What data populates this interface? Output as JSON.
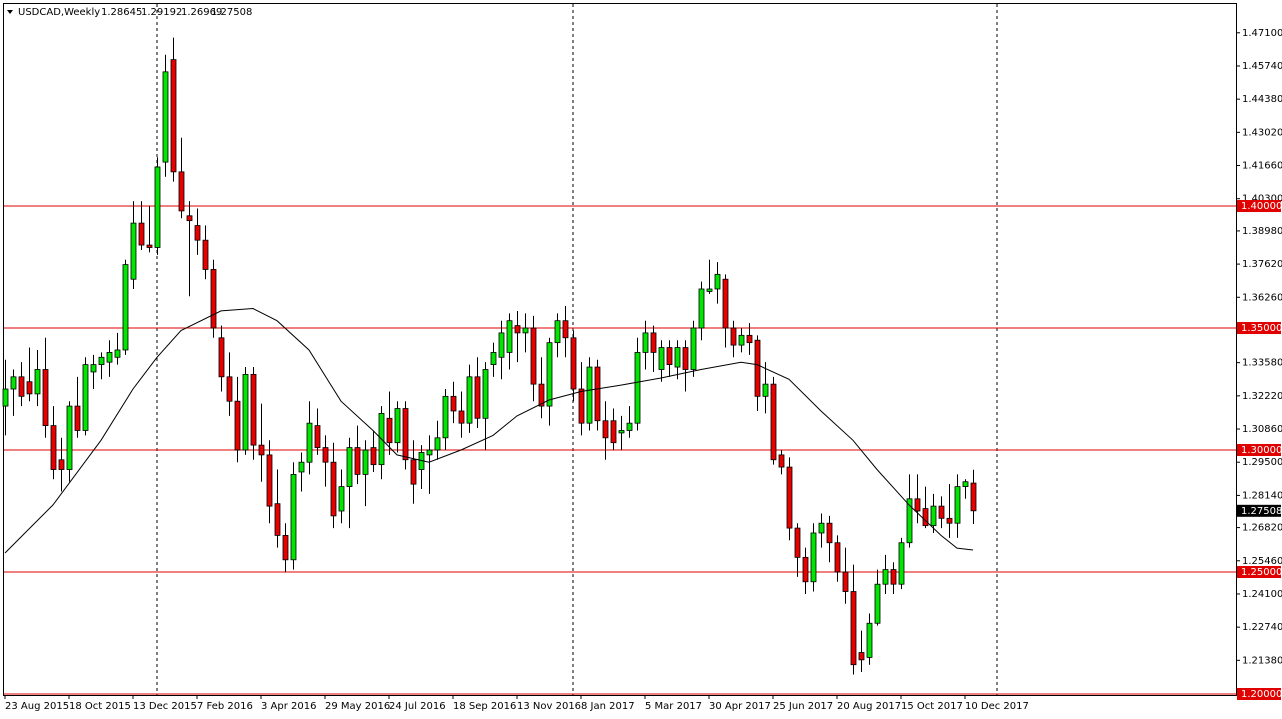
{
  "chart_data": {
    "type": "candlestick",
    "title": "USDCAD,Weekly",
    "categories": [
      "23 Aug 2015",
      null,
      null,
      null,
      null,
      null,
      null,
      null,
      "18 Oct 2015",
      null,
      null,
      null,
      null,
      null,
      null,
      null,
      "13 Dec 2015",
      null,
      null,
      null,
      null,
      null,
      null,
      null,
      "7 Feb 2016",
      null,
      null,
      null,
      null,
      null,
      null,
      null,
      "3 Apr 2016",
      null,
      null,
      null,
      null,
      null,
      null,
      null,
      "29 May 2016",
      null,
      null,
      null,
      null,
      null,
      null,
      null,
      "24 Jul 2016",
      null,
      null,
      null,
      null,
      null,
      null,
      null,
      "18 Sep 2016",
      null,
      null,
      null,
      null,
      null,
      null,
      null,
      "13 Nov 2016",
      null,
      null,
      null,
      null,
      null,
      null,
      null,
      "8 Jan 2017",
      null,
      null,
      null,
      null,
      null,
      null,
      null,
      "5 Mar 2017",
      null,
      null,
      null,
      null,
      null,
      null,
      null,
      "30 Apr 2017",
      null,
      null,
      null,
      null,
      null,
      null,
      null,
      "25 Jun 2017",
      null,
      null,
      null,
      null,
      null,
      null,
      null,
      "20 Aug 2017",
      null,
      null,
      null,
      null,
      null,
      null,
      null,
      "15 Oct 2017",
      null,
      null,
      null,
      null,
      null,
      null,
      null,
      "10 Dec 2017",
      null
    ],
    "open": [
      1.318,
      1.325,
      1.33,
      1.328,
      1.323,
      1.333,
      1.31,
      1.296,
      1.292,
      1.318,
      1.308,
      1.332,
      1.335,
      1.336,
      1.338,
      1.341,
      1.37,
      1.393,
      1.384,
      1.383,
      1.418,
      1.46,
      1.414,
      1.396,
      1.392,
      1.386,
      1.374,
      1.346,
      1.33,
      1.32,
      1.3,
      1.331,
      1.302,
      1.298,
      1.278,
      1.265,
      1.255,
      1.291,
      1.295,
      1.31,
      1.301,
      1.295,
      1.275,
      1.285,
      1.301,
      1.29,
      1.301,
      1.294,
      1.313,
      1.303,
      1.317,
      1.296,
      1.292,
      1.298,
      1.3,
      1.305,
      1.322,
      1.316,
      1.311,
      1.33,
      1.313,
      1.335,
      1.338,
      1.34,
      1.351,
      1.348,
      1.35,
      1.327,
      1.318,
      1.344,
      1.353,
      1.346,
      1.325,
      1.311,
      1.334,
      1.312,
      1.312,
      1.307,
      1.308,
      1.311,
      1.34,
      1.348,
      1.333,
      1.342,
      1.334,
      1.342,
      1.333,
      1.35,
      1.365,
      1.366,
      1.37,
      1.35,
      1.343,
      1.347,
      1.345,
      1.322,
      1.327,
      1.298,
      1.293,
      1.268,
      1.256,
      1.246,
      1.266,
      1.27,
      1.262,
      1.25,
      1.242,
      1.217,
      1.215,
      1.229,
      1.245,
      1.251,
      1.245,
      1.262,
      1.28,
      1.276,
      1.269,
      1.277,
      1.272,
      1.27,
      1.285,
      1.28645
    ],
    "high": [
      1.337,
      1.333,
      1.336,
      1.342,
      1.341,
      1.346,
      1.318,
      1.305,
      1.32,
      1.33,
      1.338,
      1.339,
      1.34,
      1.345,
      1.348,
      1.378,
      1.402,
      1.402,
      1.4,
      1.42,
      1.462,
      1.469,
      1.428,
      1.402,
      1.399,
      1.392,
      1.378,
      1.351,
      1.34,
      1.33,
      1.334,
      1.334,
      1.319,
      1.304,
      1.292,
      1.27,
      1.295,
      1.299,
      1.32,
      1.317,
      1.306,
      1.303,
      1.292,
      1.305,
      1.31,
      1.304,
      1.308,
      1.318,
      1.324,
      1.32,
      1.32,
      1.304,
      1.302,
      1.306,
      1.312,
      1.325,
      1.328,
      1.324,
      1.335,
      1.338,
      1.336,
      1.344,
      1.353,
      1.356,
      1.357,
      1.356,
      1.355,
      1.338,
      1.346,
      1.356,
      1.359,
      1.349,
      1.336,
      1.338,
      1.337,
      1.32,
      1.317,
      1.314,
      1.318,
      1.346,
      1.353,
      1.351,
      1.345,
      1.345,
      1.345,
      1.345,
      1.353,
      1.369,
      1.378,
      1.377,
      1.372,
      1.353,
      1.35,
      1.352,
      1.347,
      1.336,
      1.33,
      1.3,
      1.297,
      1.27,
      1.26,
      1.27,
      1.274,
      1.273,
      1.265,
      1.26,
      1.253,
      1.226,
      1.233,
      1.251,
      1.257,
      1.254,
      1.264,
      1.29,
      1.29,
      1.285,
      1.282,
      1.281,
      1.286,
      1.29,
      1.288,
      1.29192
    ],
    "low": [
      1.306,
      1.314,
      1.318,
      1.32,
      1.318,
      1.305,
      1.288,
      1.283,
      1.287,
      1.305,
      1.306,
      1.325,
      1.329,
      1.33,
      1.335,
      1.339,
      1.366,
      1.382,
      1.381,
      1.38,
      1.412,
      1.41,
      1.395,
      1.363,
      1.38,
      1.37,
      1.346,
      1.324,
      1.314,
      1.295,
      1.298,
      1.296,
      1.287,
      1.27,
      1.26,
      1.25,
      1.251,
      1.283,
      1.29,
      1.298,
      1.285,
      1.268,
      1.27,
      1.268,
      1.286,
      1.277,
      1.291,
      1.288,
      1.298,
      1.299,
      1.292,
      1.278,
      1.284,
      1.282,
      1.296,
      1.3,
      1.311,
      1.305,
      1.307,
      1.309,
      1.3,
      1.33,
      1.329,
      1.333,
      1.336,
      1.34,
      1.32,
      1.313,
      1.31,
      1.338,
      1.338,
      1.32,
      1.306,
      1.308,
      1.308,
      1.296,
      1.3,
      1.3,
      1.305,
      1.308,
      1.333,
      1.332,
      1.328,
      1.33,
      1.329,
      1.324,
      1.33,
      1.345,
      1.364,
      1.36,
      1.342,
      1.338,
      1.34,
      1.339,
      1.316,
      1.315,
      1.294,
      1.29,
      1.263,
      1.248,
      1.241,
      1.242,
      1.26,
      1.254,
      1.246,
      1.237,
      1.208,
      1.209,
      1.212,
      1.228,
      1.241,
      1.241,
      1.243,
      1.26,
      1.27,
      1.268,
      1.266,
      1.268,
      1.264,
      1.264,
      1.28,
      1.26969
    ],
    "close": [
      1.325,
      1.33,
      1.322,
      1.323,
      1.333,
      1.31,
      1.292,
      1.292,
      1.318,
      1.308,
      1.335,
      1.335,
      1.338,
      1.34,
      1.341,
      1.376,
      1.393,
      1.384,
      1.383,
      1.416,
      1.455,
      1.414,
      1.398,
      1.394,
      1.386,
      1.374,
      1.35,
      1.33,
      1.32,
      1.3,
      1.331,
      1.302,
      1.298,
      1.277,
      1.265,
      1.255,
      1.29,
      1.295,
      1.311,
      1.301,
      1.295,
      1.273,
      1.285,
      1.301,
      1.29,
      1.3,
      1.294,
      1.315,
      1.303,
      1.317,
      1.296,
      1.286,
      1.299,
      1.3,
      1.305,
      1.322,
      1.316,
      1.311,
      1.33,
      1.313,
      1.333,
      1.34,
      1.348,
      1.353,
      1.348,
      1.35,
      1.327,
      1.318,
      1.344,
      1.353,
      1.346,
      1.325,
      1.311,
      1.334,
      1.312,
      1.305,
      1.303,
      1.308,
      1.311,
      1.34,
      1.348,
      1.34,
      1.342,
      1.335,
      1.342,
      1.333,
      1.35,
      1.366,
      1.366,
      1.372,
      1.35,
      1.343,
      1.347,
      1.344,
      1.322,
      1.327,
      1.296,
      1.293,
      1.268,
      1.256,
      1.246,
      1.266,
      1.27,
      1.262,
      1.25,
      1.242,
      1.212,
      1.214,
      1.229,
      1.245,
      1.251,
      1.245,
      1.262,
      1.28,
      1.275,
      1.269,
      1.277,
      1.272,
      1.27,
      1.285,
      1.287,
      1.27508
    ],
    "up_color": "#00e600",
    "down_color": "#e60000",
    "ma": {
      "color": "#000000",
      "x": [
        0,
        6,
        12,
        16,
        19,
        22,
        27,
        31,
        34,
        38,
        42,
        46,
        49,
        53,
        57,
        61,
        64,
        68,
        72,
        77,
        82,
        87,
        92,
        94,
        98,
        102,
        106,
        109,
        113,
        117,
        119,
        121
      ],
      "values": [
        1.2578,
        1.2775,
        1.304,
        1.325,
        1.338,
        1.349,
        1.357,
        1.358,
        1.353,
        1.341,
        1.32,
        1.308,
        1.298,
        1.295,
        1.3,
        1.306,
        1.314,
        1.3205,
        1.324,
        1.3266,
        1.3295,
        1.333,
        1.336,
        1.335,
        1.329,
        1.316,
        1.304,
        1.292,
        1.2775,
        1.265,
        1.2598,
        1.259
      ]
    },
    "ylim": [
      1.2,
      1.4828
    ],
    "yticks": [
      {
        "value": 1.471,
        "label": "1.47100"
      },
      {
        "value": 1.4574,
        "label": "1.45740"
      },
      {
        "value": 1.4438,
        "label": "1.44380"
      },
      {
        "value": 1.4302,
        "label": "1.43020"
      },
      {
        "value": 1.4166,
        "label": "1.41660"
      },
      {
        "value": 1.403,
        "label": "1.40300"
      },
      {
        "value": 1.3898,
        "label": "1.38980"
      },
      {
        "value": 1.3762,
        "label": "1.37620"
      },
      {
        "value": 1.3626,
        "label": "1.36260"
      },
      {
        "value": 1.3358,
        "label": "1.33580"
      },
      {
        "value": 1.3222,
        "label": "1.32220"
      },
      {
        "value": 1.3086,
        "label": "1.30860"
      },
      {
        "value": 1.295,
        "label": "1.29500"
      },
      {
        "value": 1.2814,
        "label": "1.28140"
      },
      {
        "value": 1.2682,
        "label": "1.26820"
      },
      {
        "value": 1.2546,
        "label": "1.25460"
      },
      {
        "value": 1.241,
        "label": "1.24100"
      },
      {
        "value": 1.2274,
        "label": "1.22740"
      },
      {
        "value": 1.2138,
        "label": "1.21380"
      }
    ],
    "hlines": [
      {
        "value": 1.4,
        "label": "1.40000"
      },
      {
        "value": 1.35,
        "label": "1.35000"
      },
      {
        "value": 1.3,
        "label": "1.30000"
      },
      {
        "value": 1.25,
        "label": "1.25000"
      },
      {
        "value": 1.2,
        "label": "1.20000"
      }
    ],
    "hline_color": "#e00000",
    "grid": false
  }
}
